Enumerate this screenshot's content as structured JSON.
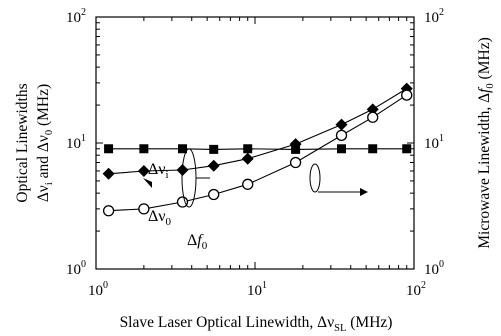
{
  "chart_data": {
    "type": "line",
    "x_scale": "log",
    "y_scale": "log",
    "xlim": [
      1,
      100
    ],
    "ylim": [
      1,
      100
    ],
    "y2lim": [
      1,
      100
    ],
    "grid": false,
    "xlabel": "Slave Laser Optical Linewidth, Δν",
    "xlabel_sub": "SL",
    "xlabel_unit": " (MHz)",
    "ylabel": {
      "line1": "Optical Linewidths",
      "line2_a": "Δν",
      "line2_a_sub": "i",
      "line2_mid": " and Δν",
      "line2_b_sub": "0",
      "line2_end": " (MHz)"
    },
    "y2label": {
      "text": "Microwave Linewidth, Δ",
      "italic": "f",
      "sub": "0",
      "unit": " (MHz)"
    },
    "x_ticks": [
      {
        "value": 1,
        "base": "10",
        "exp": "0"
      },
      {
        "value": 10,
        "base": "10",
        "exp": "1"
      },
      {
        "value": 100,
        "base": "10",
        "exp": "2"
      }
    ],
    "y_ticks": [
      {
        "value": 1,
        "base": "10",
        "exp": "0"
      },
      {
        "value": 10,
        "base": "10",
        "exp": "1"
      },
      {
        "value": 100,
        "base": "10",
        "exp": "2"
      }
    ],
    "y2_ticks": [
      {
        "value": 1,
        "base": "10",
        "exp": "0"
      },
      {
        "value": 10,
        "base": "10",
        "exp": "1"
      },
      {
        "value": 100,
        "base": "10",
        "exp": "2"
      }
    ],
    "series": [
      {
        "name": "Δν_i",
        "marker": "square",
        "axis": "left",
        "x": [
          1.2,
          2.0,
          3.5,
          5.5,
          9.0,
          18,
          35,
          55,
          90
        ],
        "y": [
          9.0,
          9.0,
          9.0,
          8.9,
          9.0,
          8.9,
          9.0,
          9.0,
          9.0
        ]
      },
      {
        "name": "Δν_0",
        "marker": "diamond",
        "axis": "left",
        "x": [
          1.2,
          2.0,
          3.5,
          5.5,
          9.0,
          18,
          35,
          55,
          90
        ],
        "y": [
          5.7,
          6.0,
          6.1,
          6.6,
          7.5,
          9.8,
          14,
          18.5,
          27
        ]
      },
      {
        "name": "Δf_0",
        "marker": "open-circle",
        "axis": "right",
        "x": [
          1.2,
          2.0,
          3.5,
          5.5,
          9.0,
          18,
          35,
          55,
          90
        ],
        "y": [
          2.9,
          3.0,
          3.4,
          3.9,
          4.7,
          7.0,
          11.5,
          16,
          24
        ]
      }
    ],
    "annotations": [
      {
        "id": "nu-i",
        "main": "Δν",
        "sub": "i",
        "italic": false
      },
      {
        "id": "nu-0",
        "main": "Δν",
        "sub": "0",
        "italic": false
      },
      {
        "id": "f-0",
        "main": "Δ",
        "italic_part": "f",
        "sub": "0",
        "italic": true
      }
    ]
  }
}
